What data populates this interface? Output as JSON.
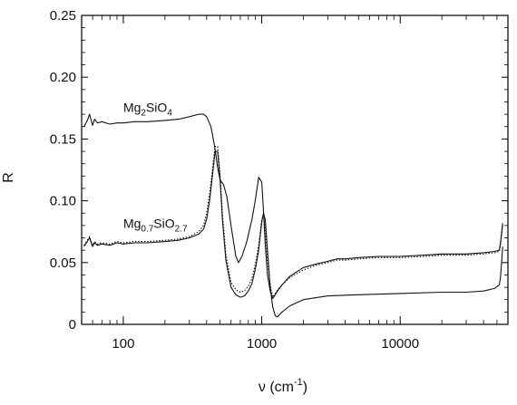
{
  "chart_data": {
    "type": "line",
    "xlabel_prefix": "ν (cm",
    "xlabel_exp": "-1",
    "xlabel_suffix": ")",
    "ylabel": "R",
    "xscale": "log",
    "xlim": [
      50,
      60000
    ],
    "ylim": [
      0,
      0.25
    ],
    "grid": false,
    "x_ticks": [
      {
        "value": 100,
        "label": "100"
      },
      {
        "value": 1000,
        "label": "1000"
      },
      {
        "value": 10000,
        "label": "10000"
      }
    ],
    "y_ticks": [
      {
        "value": 0,
        "label": "0"
      },
      {
        "value": 0.05,
        "label": "0.05"
      },
      {
        "value": 0.1,
        "label": "0.10"
      },
      {
        "value": 0.15,
        "label": "0.15"
      },
      {
        "value": 0.2,
        "label": "0.20"
      },
      {
        "value": 0.25,
        "label": "0.25"
      }
    ],
    "annotations": [
      {
        "parts": [
          [
            "Mg",
            ""
          ],
          [
            "2",
            "sub"
          ],
          [
            "SiO",
            ""
          ],
          [
            "4",
            "sub"
          ]
        ],
        "x": 100,
        "y": 0.172
      },
      {
        "parts": [
          [
            "Mg",
            ""
          ],
          [
            "0.7",
            "sub"
          ],
          [
            "SiO",
            ""
          ],
          [
            "2.7",
            "sub"
          ]
        ],
        "x": 100,
        "y": 0.078
      }
    ],
    "series": [
      {
        "style": "solid",
        "x": [
          52,
          55,
          57,
          60,
          62,
          65,
          70,
          80,
          90,
          100,
          120,
          150,
          200,
          250,
          300,
          350,
          380,
          400,
          430,
          460,
          480,
          500,
          530,
          560,
          600,
          650,
          680,
          720,
          780,
          850,
          900,
          950,
          1000,
          1030,
          1060,
          1100,
          1150,
          1200,
          1300,
          1400,
          1600,
          2000,
          2500,
          3000,
          3500,
          4000,
          5000,
          7000,
          10000,
          15000,
          20000,
          30000,
          40000,
          48000,
          52000,
          53000,
          54000,
          55000
        ],
        "y": [
          0.16,
          0.165,
          0.17,
          0.161,
          0.166,
          0.163,
          0.164,
          0.162,
          0.163,
          0.163,
          0.164,
          0.164,
          0.165,
          0.166,
          0.168,
          0.17,
          0.17,
          0.168,
          0.16,
          0.142,
          0.127,
          0.117,
          0.113,
          0.103,
          0.08,
          0.055,
          0.05,
          0.055,
          0.067,
          0.085,
          0.101,
          0.119,
          0.115,
          0.092,
          0.065,
          0.04,
          0.027,
          0.021,
          0.027,
          0.032,
          0.039,
          0.046,
          0.049,
          0.051,
          0.053,
          0.053,
          0.054,
          0.055,
          0.055,
          0.056,
          0.057,
          0.057,
          0.058,
          0.059,
          0.06,
          0.066,
          0.074,
          0.082
        ]
      },
      {
        "style": "solid",
        "x": [
          52,
          55,
          57,
          60,
          62,
          65,
          70,
          80,
          90,
          100,
          120,
          150,
          200,
          250,
          300,
          350,
          380,
          400,
          420,
          440,
          460,
          480,
          500,
          520,
          550,
          600,
          650,
          700,
          750,
          800,
          850,
          900,
          950,
          1000,
          1030,
          1060,
          1100,
          1150,
          1200,
          1250,
          1300,
          1400,
          1600,
          2000,
          3000,
          5000,
          10000,
          20000,
          30000,
          40000,
          48000,
          52000,
          53000,
          54000,
          55000
        ],
        "y": [
          0.063,
          0.067,
          0.07,
          0.063,
          0.066,
          0.064,
          0.065,
          0.064,
          0.066,
          0.065,
          0.066,
          0.066,
          0.067,
          0.068,
          0.07,
          0.073,
          0.077,
          0.085,
          0.1,
          0.12,
          0.14,
          0.14,
          0.118,
          0.085,
          0.052,
          0.03,
          0.024,
          0.022,
          0.023,
          0.027,
          0.033,
          0.045,
          0.06,
          0.083,
          0.09,
          0.085,
          0.06,
          0.03,
          0.014,
          0.007,
          0.006,
          0.01,
          0.015,
          0.02,
          0.023,
          0.024,
          0.025,
          0.026,
          0.026,
          0.027,
          0.029,
          0.032,
          0.038,
          0.05,
          0.063
        ]
      },
      {
        "style": "dotted",
        "x": [
          52,
          55,
          57,
          60,
          62,
          65,
          70,
          80,
          90,
          100,
          120,
          150,
          200,
          250,
          300,
          350,
          380,
          400,
          420,
          440,
          460,
          480,
          500,
          520,
          550,
          600,
          650,
          700,
          750,
          800,
          850,
          900,
          950,
          1000,
          1030,
          1060,
          1100,
          1150,
          1200,
          1250,
          1300,
          1400,
          1600,
          2000,
          2500,
          3000,
          3500,
          4000,
          5000,
          7000,
          10000,
          15000,
          20000,
          30000,
          40000,
          48000,
          52000,
          53000,
          54000,
          55000
        ],
        "y": [
          0.064,
          0.068,
          0.071,
          0.064,
          0.067,
          0.065,
          0.066,
          0.065,
          0.067,
          0.066,
          0.067,
          0.067,
          0.068,
          0.069,
          0.071,
          0.075,
          0.08,
          0.09,
          0.106,
          0.125,
          0.144,
          0.144,
          0.122,
          0.09,
          0.057,
          0.034,
          0.028,
          0.026,
          0.027,
          0.031,
          0.037,
          0.049,
          0.064,
          0.085,
          0.088,
          0.078,
          0.052,
          0.032,
          0.022,
          0.025,
          0.028,
          0.032,
          0.038,
          0.044,
          0.048,
          0.05,
          0.052,
          0.052,
          0.053,
          0.054,
          0.054,
          0.055,
          0.056,
          0.056,
          0.057,
          0.058,
          0.059,
          0.064,
          0.072,
          0.08
        ]
      }
    ]
  }
}
